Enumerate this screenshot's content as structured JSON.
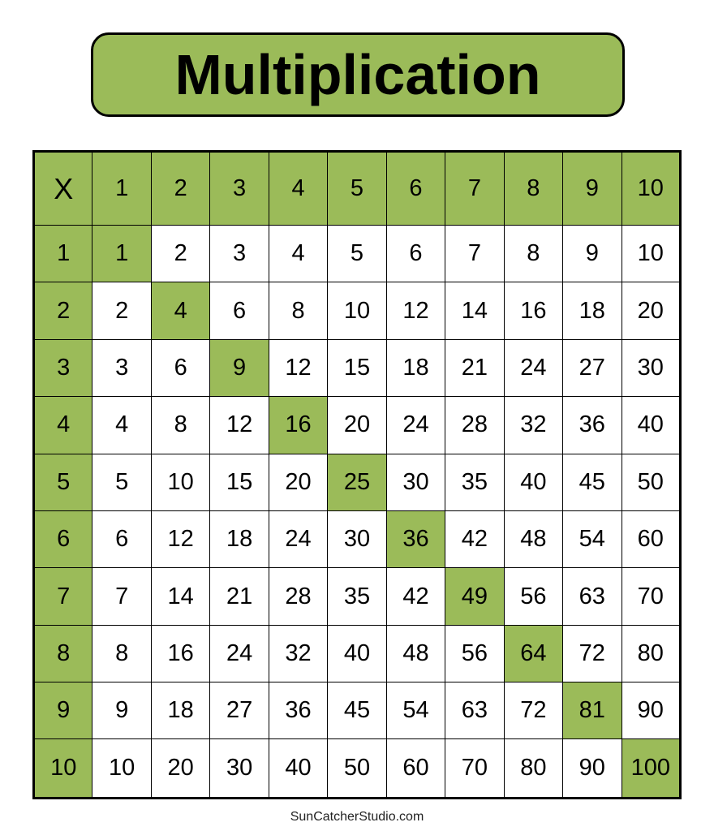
{
  "title": "Multiplication",
  "accent_color": "#9bbb59",
  "corner_label": "X",
  "column_headers": [
    "1",
    "2",
    "3",
    "4",
    "5",
    "6",
    "7",
    "8",
    "9",
    "10"
  ],
  "rows": [
    {
      "header": "1",
      "cells": [
        "1",
        "2",
        "3",
        "4",
        "5",
        "6",
        "7",
        "8",
        "9",
        "10"
      ]
    },
    {
      "header": "2",
      "cells": [
        "2",
        "4",
        "6",
        "8",
        "10",
        "12",
        "14",
        "16",
        "18",
        "20"
      ]
    },
    {
      "header": "3",
      "cells": [
        "3",
        "6",
        "9",
        "12",
        "15",
        "18",
        "21",
        "24",
        "27",
        "30"
      ]
    },
    {
      "header": "4",
      "cells": [
        "4",
        "8",
        "12",
        "16",
        "20",
        "24",
        "28",
        "32",
        "36",
        "40"
      ]
    },
    {
      "header": "5",
      "cells": [
        "5",
        "10",
        "15",
        "20",
        "25",
        "30",
        "35",
        "40",
        "45",
        "50"
      ]
    },
    {
      "header": "6",
      "cells": [
        "6",
        "12",
        "18",
        "24",
        "30",
        "36",
        "42",
        "48",
        "54",
        "60"
      ]
    },
    {
      "header": "7",
      "cells": [
        "7",
        "14",
        "21",
        "28",
        "35",
        "42",
        "49",
        "56",
        "63",
        "70"
      ]
    },
    {
      "header": "8",
      "cells": [
        "8",
        "16",
        "24",
        "32",
        "40",
        "48",
        "56",
        "64",
        "72",
        "80"
      ]
    },
    {
      "header": "9",
      "cells": [
        "9",
        "18",
        "27",
        "36",
        "45",
        "54",
        "63",
        "72",
        "81",
        "90"
      ]
    },
    {
      "header": "10",
      "cells": [
        "10",
        "20",
        "30",
        "40",
        "50",
        "60",
        "70",
        "80",
        "90",
        "100"
      ]
    }
  ],
  "footer": "SunCatcherStudio.com"
}
